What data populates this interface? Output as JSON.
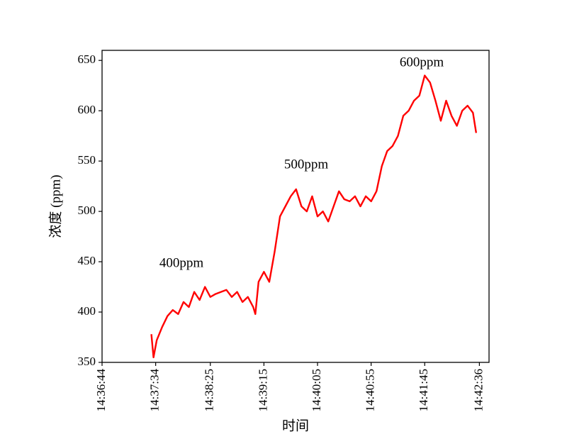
{
  "chart_data": {
    "type": "line",
    "x_label": "时间",
    "y_label": "浓度 (ppm)",
    "x": [
      "14:37:30",
      "14:37:32",
      "14:37:35",
      "14:37:40",
      "14:37:45",
      "14:37:50",
      "14:37:55",
      "14:38:00",
      "14:38:05",
      "14:38:10",
      "14:38:15",
      "14:38:20",
      "14:38:25",
      "14:38:30",
      "14:38:35",
      "14:38:40",
      "14:38:45",
      "14:38:50",
      "14:38:55",
      "14:39:00",
      "14:39:05",
      "14:39:07",
      "14:39:10",
      "14:39:15",
      "14:39:20",
      "14:39:25",
      "14:39:30",
      "14:39:35",
      "14:39:40",
      "14:39:45",
      "14:39:50",
      "14:39:55",
      "14:40:00",
      "14:40:05",
      "14:40:10",
      "14:40:15",
      "14:40:20",
      "14:40:25",
      "14:40:30",
      "14:40:35",
      "14:40:40",
      "14:40:45",
      "14:40:50",
      "14:40:55",
      "14:41:00",
      "14:41:05",
      "14:41:10",
      "14:41:15",
      "14:41:20",
      "14:41:25",
      "14:41:30",
      "14:41:35",
      "14:41:40",
      "14:41:45",
      "14:41:50",
      "14:41:55",
      "14:42:00",
      "14:42:05",
      "14:42:10",
      "14:42:15",
      "14:42:20",
      "14:42:25",
      "14:42:30",
      "14:42:33"
    ],
    "series": [
      {
        "name": "浓度",
        "color": "#ff0000",
        "values": [
          378,
          355,
          372,
          385,
          396,
          402,
          398,
          410,
          405,
          420,
          412,
          425,
          415,
          418,
          420,
          422,
          415,
          420,
          410,
          415,
          405,
          398,
          430,
          440,
          430,
          460,
          495,
          505,
          515,
          522,
          505,
          500,
          515,
          495,
          500,
          490,
          505,
          520,
          512,
          510,
          515,
          505,
          515,
          510,
          520,
          545,
          560,
          565,
          575,
          595,
          600,
          610,
          615,
          635,
          628,
          610,
          590,
          610,
          595,
          585,
          600,
          605,
          598,
          578
        ]
      }
    ],
    "xlim": [
      "14:36:44",
      "14:42:45"
    ],
    "xticks": [
      "14:36:44",
      "14:37:34",
      "14:38:25",
      "14:39:15",
      "14:40:05",
      "14:40:55",
      "14:41:45",
      "14:42:36"
    ],
    "ylim": [
      350,
      660
    ],
    "yticks": [
      350,
      400,
      450,
      500,
      550,
      600,
      650
    ],
    "annotations": [
      "400ppm",
      "500ppm",
      "600ppm"
    ]
  }
}
